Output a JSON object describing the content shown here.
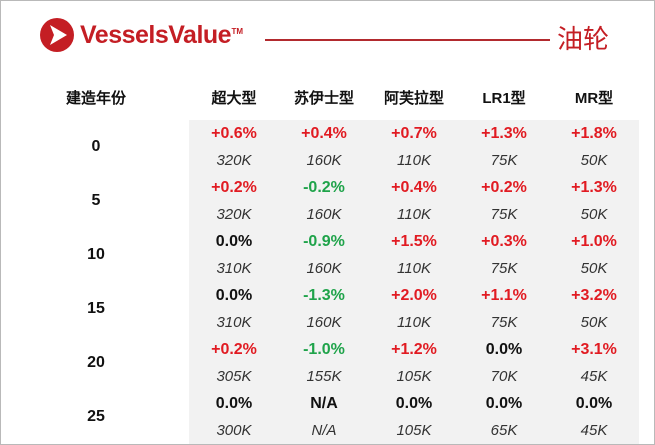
{
  "header": {
    "brand": "VesselsValue",
    "trademark": "TM",
    "title": "油轮",
    "brand_color": "#c41e24"
  },
  "table": {
    "year_header": "建造年份",
    "columns": [
      "超大型",
      "苏伊士型",
      "阿芙拉型",
      "LR1型",
      "MR型"
    ],
    "rows": [
      {
        "age": "0",
        "cells": [
          {
            "pct": "+0.6%",
            "trend": "pos",
            "val": "320K"
          },
          {
            "pct": "+0.4%",
            "trend": "pos",
            "val": "160K"
          },
          {
            "pct": "+0.7%",
            "trend": "pos",
            "val": "110K"
          },
          {
            "pct": "+1.3%",
            "trend": "pos",
            "val": "75K"
          },
          {
            "pct": "+1.8%",
            "trend": "pos",
            "val": "50K"
          }
        ]
      },
      {
        "age": "5",
        "cells": [
          {
            "pct": "+0.2%",
            "trend": "pos",
            "val": "320K"
          },
          {
            "pct": "-0.2%",
            "trend": "neg",
            "val": "160K"
          },
          {
            "pct": "+0.4%",
            "trend": "pos",
            "val": "110K"
          },
          {
            "pct": "+0.2%",
            "trend": "pos",
            "val": "75K"
          },
          {
            "pct": "+1.3%",
            "trend": "pos",
            "val": "50K"
          }
        ]
      },
      {
        "age": "10",
        "cells": [
          {
            "pct": "0.0%",
            "trend": "zero",
            "val": "310K"
          },
          {
            "pct": "-0.9%",
            "trend": "neg",
            "val": "160K"
          },
          {
            "pct": "+1.5%",
            "trend": "pos",
            "val": "110K"
          },
          {
            "pct": "+0.3%",
            "trend": "pos",
            "val": "75K"
          },
          {
            "pct": "+1.0%",
            "trend": "pos",
            "val": "50K"
          }
        ]
      },
      {
        "age": "15",
        "cells": [
          {
            "pct": "0.0%",
            "trend": "zero",
            "val": "310K"
          },
          {
            "pct": "-1.3%",
            "trend": "neg",
            "val": "160K"
          },
          {
            "pct": "+2.0%",
            "trend": "pos",
            "val": "110K"
          },
          {
            "pct": "+1.1%",
            "trend": "pos",
            "val": "75K"
          },
          {
            "pct": "+3.2%",
            "trend": "pos",
            "val": "50K"
          }
        ]
      },
      {
        "age": "20",
        "cells": [
          {
            "pct": "+0.2%",
            "trend": "pos",
            "val": "305K"
          },
          {
            "pct": "-1.0%",
            "trend": "neg",
            "val": "155K"
          },
          {
            "pct": "+1.2%",
            "trend": "pos",
            "val": "105K"
          },
          {
            "pct": "0.0%",
            "trend": "zero",
            "val": "70K"
          },
          {
            "pct": "+3.1%",
            "trend": "pos",
            "val": "45K"
          }
        ]
      },
      {
        "age": "25",
        "cells": [
          {
            "pct": "0.0%",
            "trend": "zero",
            "val": "300K"
          },
          {
            "pct": "N/A",
            "trend": "zero",
            "val": "N/A"
          },
          {
            "pct": "0.0%",
            "trend": "zero",
            "val": "105K"
          },
          {
            "pct": "0.0%",
            "trend": "zero",
            "val": "65K"
          },
          {
            "pct": "0.0%",
            "trend": "zero",
            "val": "45K"
          }
        ]
      }
    ],
    "colors": {
      "pos": "#e11b22",
      "neg": "#1fa34a",
      "zero": "#111111"
    }
  }
}
